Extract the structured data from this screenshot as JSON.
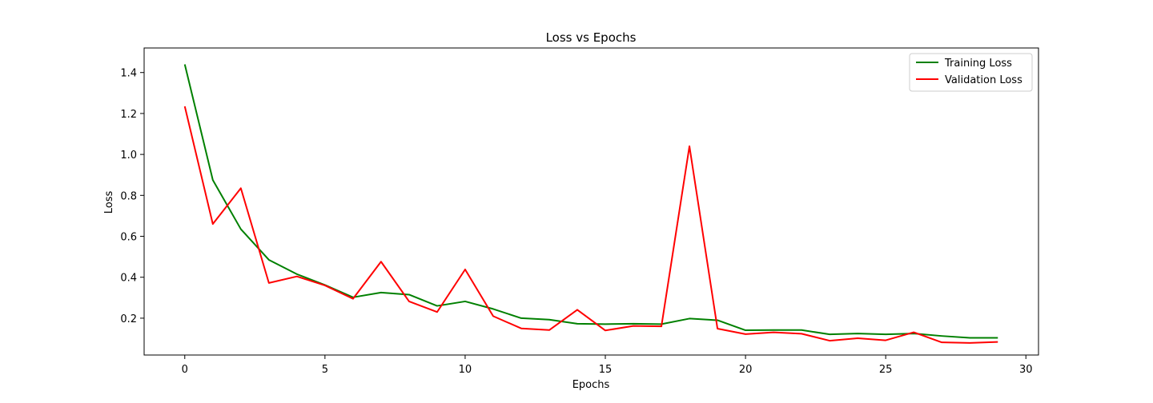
{
  "chart_data": {
    "type": "line",
    "title": "Loss vs Epochs",
    "xlabel": "Epochs",
    "ylabel": "Loss",
    "xlim": [
      -1.45,
      30.45
    ],
    "ylim": [
      0.02,
      1.52
    ],
    "xticks": [
      0,
      5,
      10,
      15,
      20,
      25,
      30
    ],
    "yticks": [
      0.2,
      0.4,
      0.6,
      0.8,
      1.0,
      1.2,
      1.4
    ],
    "ytick_labels": [
      "0.2",
      "0.4",
      "0.6",
      "0.8",
      "1.0",
      "1.2",
      "1.4"
    ],
    "grid": false,
    "legend_position": "top-right",
    "x": [
      0,
      1,
      2,
      3,
      4,
      5,
      6,
      7,
      8,
      9,
      10,
      11,
      12,
      13,
      14,
      15,
      16,
      17,
      18,
      19,
      20,
      21,
      22,
      23,
      24,
      25,
      26,
      27,
      28,
      29
    ],
    "series": [
      {
        "name": "Training Loss",
        "color": "#008000",
        "values": [
          1.44,
          0.875,
          0.635,
          0.485,
          0.415,
          0.362,
          0.302,
          0.325,
          0.315,
          0.26,
          0.282,
          0.245,
          0.2,
          0.193,
          0.173,
          0.171,
          0.173,
          0.171,
          0.198,
          0.19,
          0.141,
          0.142,
          0.142,
          0.121,
          0.125,
          0.121,
          0.125,
          0.113,
          0.104,
          0.104
        ]
      },
      {
        "name": "Validation Loss",
        "color": "#ff0000",
        "values": [
          1.235,
          0.66,
          0.835,
          0.372,
          0.404,
          0.36,
          0.295,
          0.476,
          0.282,
          0.23,
          0.438,
          0.21,
          0.15,
          0.142,
          0.241,
          0.14,
          0.162,
          0.16,
          1.04,
          0.149,
          0.122,
          0.131,
          0.124,
          0.09,
          0.102,
          0.092,
          0.131,
          0.082,
          0.079,
          0.084
        ]
      }
    ]
  }
}
